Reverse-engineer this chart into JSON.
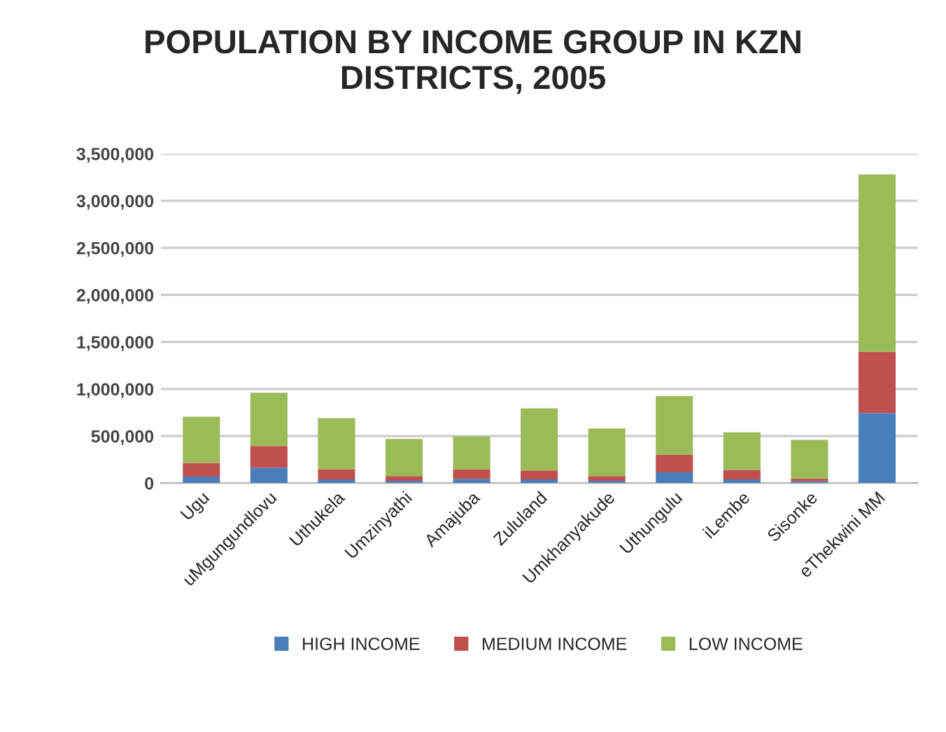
{
  "chart_data": {
    "type": "bar",
    "stacked": true,
    "title": "POPULATION BY INCOME GROUP IN KZN\nDISTRICTS, 2005",
    "categories": [
      "Ugu",
      "uMgungundlovu",
      "Uthukela",
      "Umzinyathi",
      "Amajuba",
      "Zululand",
      "Umkhanyakude",
      "Uthungulu",
      "iLembe",
      "Sisonke",
      "eThekwini MM"
    ],
    "series": [
      {
        "name": "HIGH INCOME",
        "color": "#4a7ebb",
        "values": [
          70000,
          165000,
          40000,
          25000,
          45000,
          40000,
          25000,
          115000,
          40000,
          20000,
          745000
        ]
      },
      {
        "name": "MEDIUM INCOME",
        "color": "#c0504d",
        "values": [
          145000,
          230000,
          105000,
          50000,
          100000,
          95000,
          50000,
          185000,
          100000,
          30000,
          650000
        ]
      },
      {
        "name": "LOW INCOME",
        "color": "#9bbb59",
        "values": [
          490000,
          565000,
          545000,
          395000,
          350000,
          660000,
          505000,
          625000,
          400000,
          410000,
          1885000
        ]
      }
    ],
    "ylim": [
      0,
      3500000
    ],
    "yticks": [
      {
        "value": 0,
        "label": "0"
      },
      {
        "value": 500000,
        "label": "500,000"
      },
      {
        "value": 1000000,
        "label": "1,000,000"
      },
      {
        "value": 1500000,
        "label": "1,500,000"
      },
      {
        "value": 2000000,
        "label": "2,000,000"
      },
      {
        "value": 2500000,
        "label": "2,500,000"
      },
      {
        "value": 3000000,
        "label": "3,000,000"
      },
      {
        "value": 3500000,
        "label": "3,500,000"
      }
    ],
    "grid": "y",
    "legend": "bottom"
  }
}
